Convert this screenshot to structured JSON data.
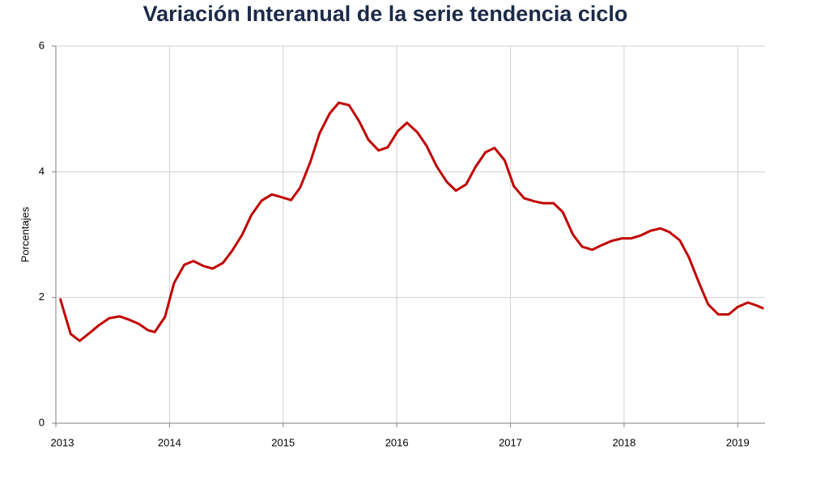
{
  "chart_data": {
    "type": "line",
    "title": "Variación Interanual de la serie tendencia ciclo",
    "y_label": "Porcentajes",
    "x": [
      2013.04,
      2013.13,
      2013.21,
      2013.3,
      2013.38,
      2013.47,
      2013.56,
      2013.64,
      2013.73,
      2013.81,
      2013.87,
      2013.96,
      2014.04,
      2014.13,
      2014.21,
      2014.3,
      2014.38,
      2014.47,
      2014.55,
      2014.64,
      2014.72,
      2014.81,
      2014.9,
      2014.98,
      2015.07,
      2015.15,
      2015.24,
      2015.32,
      2015.41,
      2015.49,
      2015.58,
      2015.67,
      2015.75,
      2015.84,
      2015.92,
      2016.01,
      2016.09,
      2016.18,
      2016.26,
      2016.35,
      2016.44,
      2016.52,
      2016.61,
      2016.69,
      2016.78,
      2016.86,
      2016.95,
      2017.03,
      2017.12,
      2017.21,
      2017.29,
      2017.38,
      2017.46,
      2017.55,
      2017.63,
      2017.72,
      2017.8,
      2017.89,
      2017.98,
      2018.06,
      2018.15,
      2018.23,
      2018.32,
      2018.4,
      2018.49,
      2018.57,
      2018.66,
      2018.74,
      2018.83,
      2018.92,
      2019.0,
      2019.09,
      2019.17,
      2019.22
    ],
    "series": [
      {
        "color": "#c00000",
        "values": [
          1.97,
          1.42,
          1.31,
          1.44,
          1.56,
          1.67,
          1.7,
          1.65,
          1.58,
          1.48,
          1.45,
          1.69,
          2.23,
          2.52,
          2.58,
          2.5,
          2.46,
          2.55,
          2.74,
          3.0,
          3.31,
          3.54,
          3.64,
          3.6,
          3.55,
          3.75,
          4.16,
          4.61,
          4.93,
          5.1,
          5.06,
          4.8,
          4.51,
          4.34,
          4.39,
          4.65,
          4.78,
          4.63,
          4.42,
          4.09,
          3.84,
          3.7,
          3.8,
          4.07,
          4.31,
          4.38,
          4.18,
          3.77,
          3.58,
          3.53,
          3.5,
          3.5,
          3.36,
          3.0,
          2.81,
          2.76,
          2.83,
          2.9,
          2.94,
          2.94,
          2.99,
          3.06,
          3.1,
          3.04,
          2.91,
          2.64,
          2.23,
          1.89,
          1.73,
          1.73,
          1.85,
          1.92,
          1.87,
          1.83
        ]
      }
    ],
    "xlim": [
      2013,
      2019.24
    ],
    "xticks": [
      2013,
      2014,
      2015,
      2016,
      2017,
      2018,
      2019
    ],
    "ylim": [
      0,
      6
    ],
    "yticks": [
      0,
      2,
      4,
      6
    ],
    "grid": true
  }
}
